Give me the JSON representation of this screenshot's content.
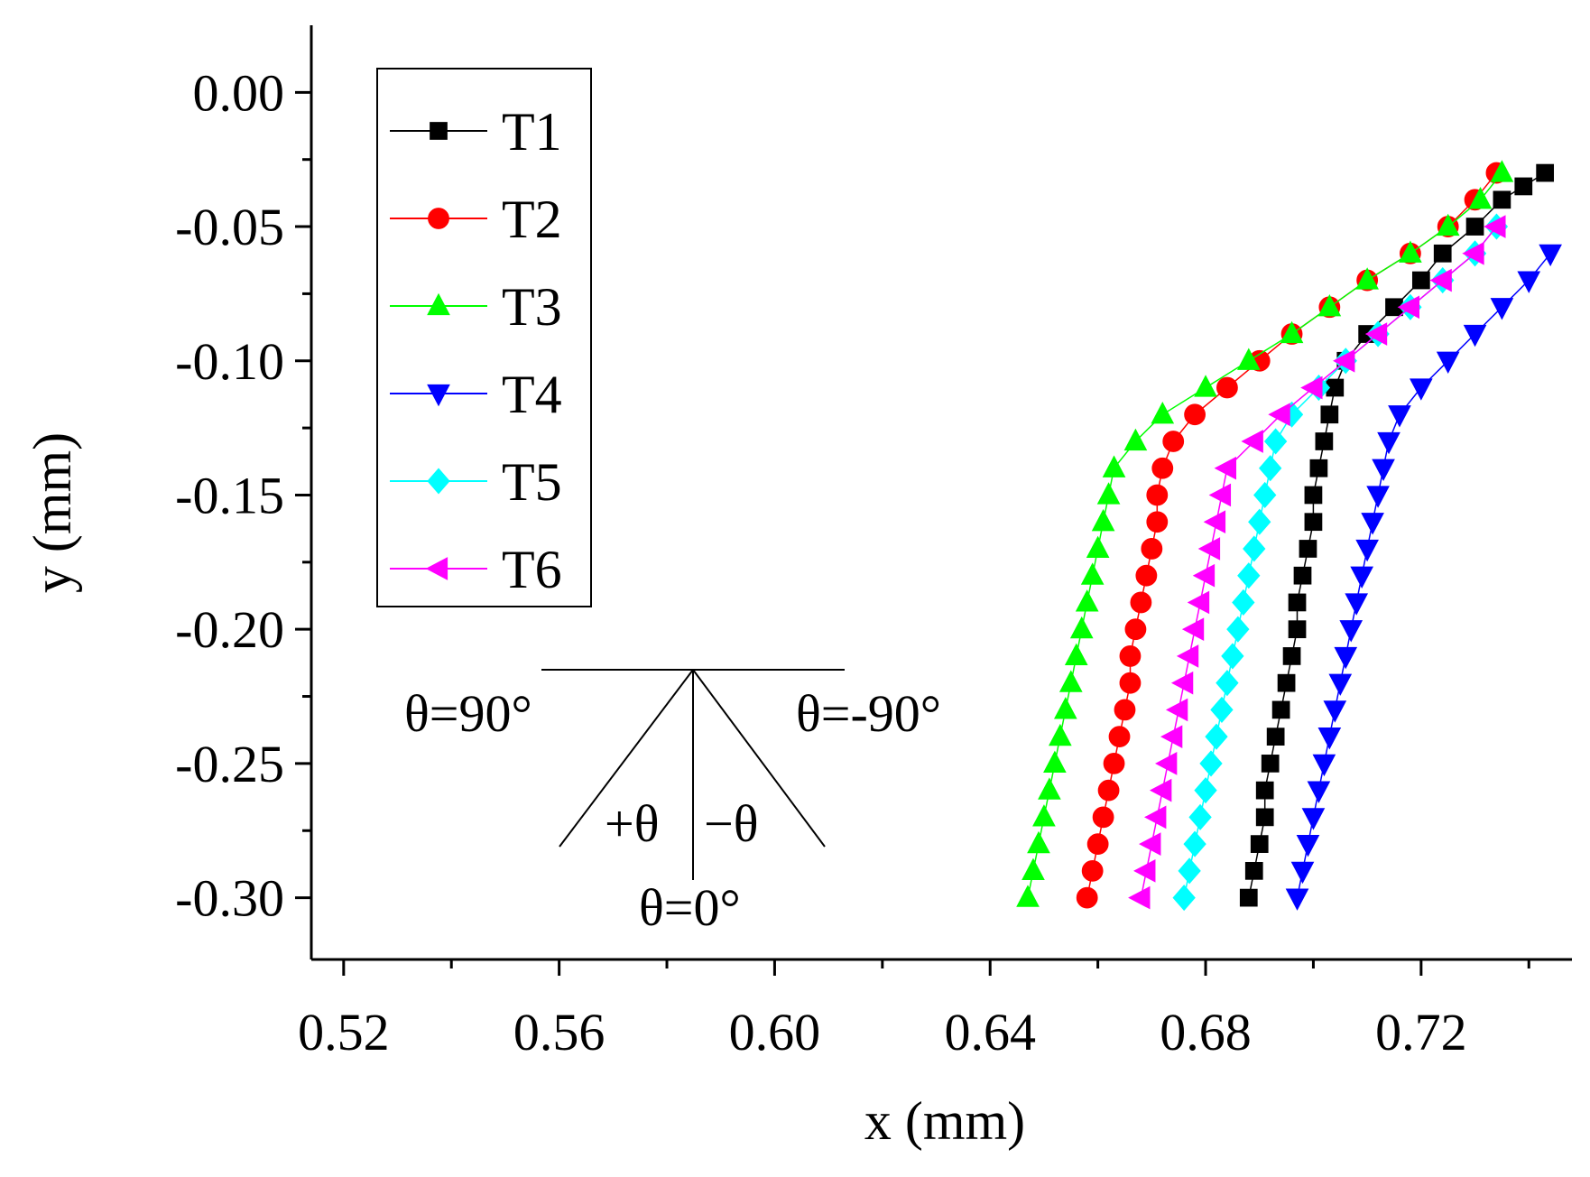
{
  "chart_data": {
    "type": "scatter",
    "xlabel": "x (mm)",
    "ylabel": "y (mm)",
    "xlim": [
      0.514,
      0.748
    ],
    "ylim": [
      -0.323,
      0.025
    ],
    "xticks": [
      "0.52",
      "0.56",
      "0.60",
      "0.64",
      "0.68",
      "0.72"
    ],
    "xtick_values": [
      0.52,
      0.56,
      0.6,
      0.64,
      0.68,
      0.72
    ],
    "yticks": [
      "0.00",
      "-0.05",
      "-0.10",
      "-0.15",
      "-0.20",
      "-0.25",
      "-0.30"
    ],
    "ytick_values": [
      0.0,
      -0.05,
      -0.1,
      -0.15,
      -0.2,
      -0.25,
      -0.3
    ],
    "legend_position": "top-left",
    "series": [
      {
        "name": "T1",
        "color": "#000000",
        "marker": "square",
        "x": [
          0.688,
          0.689,
          0.69,
          0.691,
          0.691,
          0.692,
          0.693,
          0.694,
          0.695,
          0.696,
          0.697,
          0.697,
          0.698,
          0.699,
          0.7,
          0.7,
          0.701,
          0.702,
          0.703,
          0.704,
          0.706,
          0.71,
          0.715,
          0.72,
          0.724,
          0.73,
          0.735,
          0.739,
          0.743
        ],
        "y": [
          -0.3,
          -0.29,
          -0.28,
          -0.27,
          -0.26,
          -0.25,
          -0.24,
          -0.23,
          -0.22,
          -0.21,
          -0.2,
          -0.19,
          -0.18,
          -0.17,
          -0.16,
          -0.15,
          -0.14,
          -0.13,
          -0.12,
          -0.11,
          -0.1,
          -0.09,
          -0.08,
          -0.07,
          -0.06,
          -0.05,
          -0.04,
          -0.035,
          -0.03
        ]
      },
      {
        "name": "T2",
        "color": "#ff0000",
        "marker": "circle",
        "x": [
          0.658,
          0.659,
          0.66,
          0.661,
          0.662,
          0.663,
          0.664,
          0.665,
          0.666,
          0.666,
          0.667,
          0.668,
          0.669,
          0.67,
          0.671,
          0.671,
          0.672,
          0.674,
          0.678,
          0.684,
          0.69,
          0.696,
          0.703,
          0.71,
          0.718,
          0.725,
          0.73,
          0.734
        ],
        "y": [
          -0.3,
          -0.29,
          -0.28,
          -0.27,
          -0.26,
          -0.25,
          -0.24,
          -0.23,
          -0.22,
          -0.21,
          -0.2,
          -0.19,
          -0.18,
          -0.17,
          -0.16,
          -0.15,
          -0.14,
          -0.13,
          -0.12,
          -0.11,
          -0.1,
          -0.09,
          -0.08,
          -0.07,
          -0.06,
          -0.05,
          -0.04,
          -0.03
        ]
      },
      {
        "name": "T3",
        "color": "#00ff00",
        "marker": "triangle-up",
        "x": [
          0.647,
          0.648,
          0.649,
          0.65,
          0.651,
          0.652,
          0.653,
          0.654,
          0.655,
          0.656,
          0.657,
          0.658,
          0.659,
          0.66,
          0.661,
          0.662,
          0.663,
          0.667,
          0.672,
          0.68,
          0.688,
          0.696,
          0.703,
          0.71,
          0.718,
          0.725,
          0.731,
          0.735
        ],
        "y": [
          -0.3,
          -0.29,
          -0.28,
          -0.27,
          -0.26,
          -0.25,
          -0.24,
          -0.23,
          -0.22,
          -0.21,
          -0.2,
          -0.19,
          -0.18,
          -0.17,
          -0.16,
          -0.15,
          -0.14,
          -0.13,
          -0.12,
          -0.11,
          -0.1,
          -0.09,
          -0.08,
          -0.07,
          -0.06,
          -0.05,
          -0.04,
          -0.03
        ]
      },
      {
        "name": "T4",
        "color": "#0000ff",
        "marker": "triangle-down",
        "x": [
          0.697,
          0.698,
          0.699,
          0.7,
          0.701,
          0.702,
          0.703,
          0.704,
          0.705,
          0.706,
          0.707,
          0.708,
          0.709,
          0.71,
          0.711,
          0.712,
          0.713,
          0.714,
          0.716,
          0.72,
          0.725,
          0.73,
          0.735,
          0.74,
          0.744
        ],
        "y": [
          -0.3,
          -0.29,
          -0.28,
          -0.27,
          -0.26,
          -0.25,
          -0.24,
          -0.23,
          -0.22,
          -0.21,
          -0.2,
          -0.19,
          -0.18,
          -0.17,
          -0.16,
          -0.15,
          -0.14,
          -0.13,
          -0.12,
          -0.11,
          -0.1,
          -0.09,
          -0.08,
          -0.07,
          -0.06
        ]
      },
      {
        "name": "T5",
        "color": "#00ffff",
        "marker": "diamond",
        "x": [
          0.676,
          0.677,
          0.678,
          0.679,
          0.68,
          0.681,
          0.682,
          0.683,
          0.684,
          0.685,
          0.686,
          0.687,
          0.688,
          0.689,
          0.69,
          0.691,
          0.692,
          0.693,
          0.696,
          0.701,
          0.706,
          0.712,
          0.718,
          0.724,
          0.73,
          0.734
        ],
        "y": [
          -0.3,
          -0.29,
          -0.28,
          -0.27,
          -0.26,
          -0.25,
          -0.24,
          -0.23,
          -0.22,
          -0.21,
          -0.2,
          -0.19,
          -0.18,
          -0.17,
          -0.16,
          -0.15,
          -0.14,
          -0.13,
          -0.12,
          -0.11,
          -0.1,
          -0.09,
          -0.08,
          -0.07,
          -0.06,
          -0.05
        ]
      },
      {
        "name": "T6",
        "color": "#ff00ff",
        "marker": "triangle-left",
        "x": [
          0.668,
          0.669,
          0.67,
          0.671,
          0.672,
          0.673,
          0.674,
          0.675,
          0.676,
          0.677,
          0.678,
          0.679,
          0.68,
          0.681,
          0.682,
          0.683,
          0.684,
          0.689,
          0.694,
          0.7,
          0.706,
          0.712,
          0.718,
          0.724,
          0.73,
          0.734
        ],
        "y": [
          -0.3,
          -0.29,
          -0.28,
          -0.27,
          -0.26,
          -0.25,
          -0.24,
          -0.23,
          -0.22,
          -0.21,
          -0.2,
          -0.19,
          -0.18,
          -0.17,
          -0.16,
          -0.15,
          -0.14,
          -0.13,
          -0.12,
          -0.11,
          -0.1,
          -0.09,
          -0.08,
          -0.07,
          -0.06,
          -0.05
        ]
      }
    ],
    "annotations": {
      "theta_pos90": "θ=90°",
      "theta_neg90": "θ=-90°",
      "plus_theta": "+θ",
      "minus_theta": "−θ",
      "theta_zero": "θ=0°"
    }
  }
}
